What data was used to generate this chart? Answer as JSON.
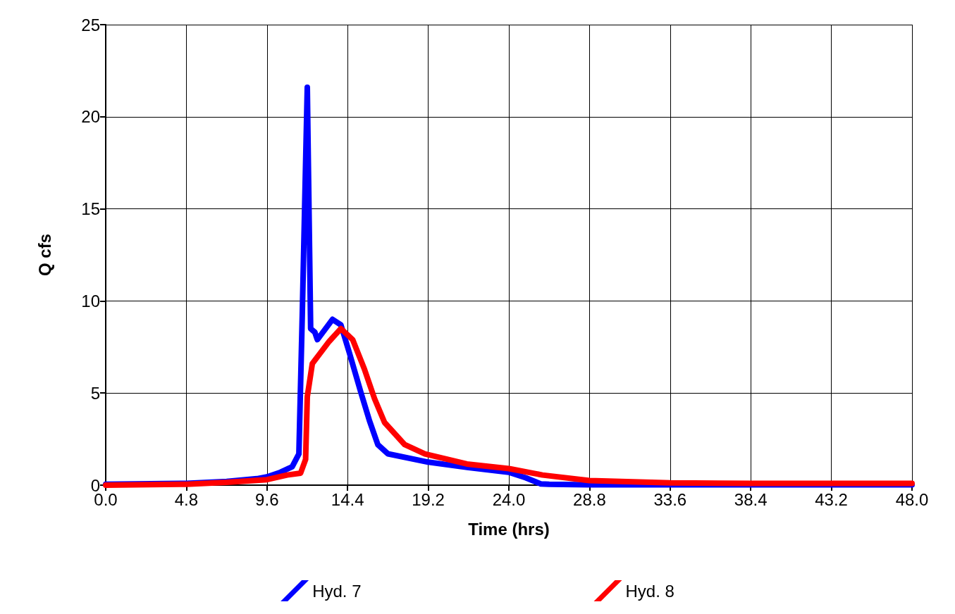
{
  "chart_data": {
    "type": "line",
    "xlabel": "Time (hrs)",
    "ylabel": "Q cfs",
    "xlim": [
      0,
      48
    ],
    "ylim": [
      0,
      25
    ],
    "xticks": [
      {
        "value": 0,
        "label": "0.0"
      },
      {
        "value": 4.8,
        "label": "4.8"
      },
      {
        "value": 9.6,
        "label": "9.6"
      },
      {
        "value": 14.4,
        "label": "14.4"
      },
      {
        "value": 19.2,
        "label": "19.2"
      },
      {
        "value": 24,
        "label": "24.0"
      },
      {
        "value": 28.8,
        "label": "28.8"
      },
      {
        "value": 33.6,
        "label": "33.6"
      },
      {
        "value": 38.4,
        "label": "38.4"
      },
      {
        "value": 43.2,
        "label": "43.2"
      },
      {
        "value": 48,
        "label": "48.0"
      }
    ],
    "yticks": [
      0,
      5,
      10,
      15,
      20,
      25
    ],
    "grid": true,
    "legend": "bottom",
    "marker": "none",
    "line_style": "solid",
    "series": [
      {
        "name": "Hyd. 7",
        "color": "#0000ff",
        "x": [
          0,
          4.8,
          7.2,
          9,
          9.6,
          10.4,
          11.1,
          11.5,
          11.7,
          12.0,
          12.2,
          12.45,
          12.6,
          13.5,
          14.0,
          14.5,
          15.2,
          15.7,
          16.2,
          16.8,
          19.2,
          21.6,
          24,
          25,
          25.9,
          26.4,
          28.8,
          33.6,
          38.4,
          43.2,
          48
        ],
        "values": [
          0.05,
          0.1,
          0.2,
          0.35,
          0.45,
          0.7,
          1.0,
          1.7,
          9.2,
          21.6,
          8.5,
          8.3,
          7.9,
          9.0,
          8.7,
          7.2,
          5.0,
          3.5,
          2.2,
          1.7,
          1.25,
          0.95,
          0.7,
          0.4,
          0.07,
          0.05,
          0.02,
          0.02,
          0.02,
          0.02,
          0.02
        ]
      },
      {
        "name": "Hyd. 8",
        "color": "#ff0000",
        "x": [
          0,
          4.8,
          7.2,
          9.6,
          10.8,
          11.6,
          11.9,
          12.0,
          12.3,
          12.8,
          13.3,
          14.0,
          14.7,
          15.4,
          16.0,
          16.6,
          17.8,
          19.0,
          21.5,
          24,
          26,
          28.8,
          33.6,
          38.4,
          43.2,
          48
        ],
        "values": [
          0,
          0.05,
          0.15,
          0.3,
          0.55,
          0.65,
          1.4,
          4.8,
          6.6,
          7.2,
          7.8,
          8.5,
          7.9,
          6.3,
          4.7,
          3.4,
          2.2,
          1.7,
          1.15,
          0.9,
          0.55,
          0.25,
          0.12,
          0.1,
          0.1,
          0.1
        ]
      }
    ]
  }
}
